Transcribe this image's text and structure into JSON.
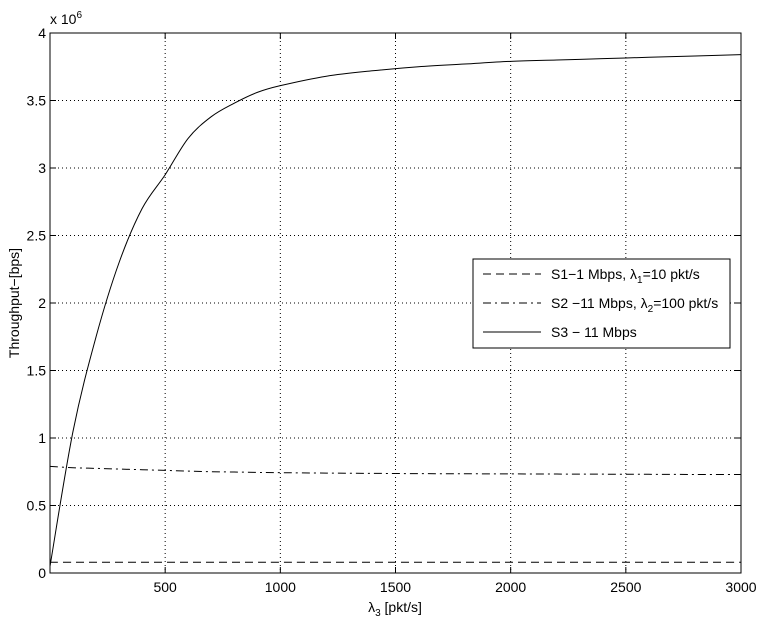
{
  "chart_data": {
    "type": "line",
    "title": "",
    "xlabel": {
      "base": "λ",
      "sub": "3",
      "rest": " [pkt/s]"
    },
    "ylabel": "Throughput−[bps]",
    "y_multiplier": {
      "base": "x 10",
      "exp": "6"
    },
    "xlim": [
      0,
      3000
    ],
    "ylim": [
      0,
      4
    ],
    "xticks": [
      500,
      1000,
      1500,
      2000,
      2500,
      3000
    ],
    "yticks": [
      0,
      0.5,
      1,
      1.5,
      2,
      2.5,
      3,
      3.5,
      4
    ],
    "xtick_labels": [
      "500",
      "1000",
      "1500",
      "2000",
      "2500",
      "3000"
    ],
    "ytick_labels": [
      "0",
      "0.5",
      "1",
      "1.5",
      "2",
      "2.5",
      "3",
      "3.5",
      "4"
    ],
    "grid": true,
    "legend_position": "right-middle",
    "x": [
      0,
      100,
      200,
      300,
      400,
      500,
      600,
      700,
      800,
      900,
      1000,
      1200,
      1400,
      1600,
      1800,
      2000,
      2200,
      2400,
      2600,
      2800,
      3000
    ],
    "series": [
      {
        "style": "dashed",
        "legend": {
          "pre": "S1−1 Mbps, λ",
          "sub": "1",
          "post": "=10 pkt/s"
        },
        "values": [
          0.08,
          0.08,
          0.08,
          0.08,
          0.08,
          0.08,
          0.08,
          0.08,
          0.08,
          0.08,
          0.08,
          0.08,
          0.08,
          0.08,
          0.08,
          0.08,
          0.08,
          0.08,
          0.08,
          0.08,
          0.08
        ]
      },
      {
        "style": "dashdot",
        "legend": {
          "pre": "S2 −11 Mbps, λ",
          "sub": "2",
          "post": "=100 pkt/s"
        },
        "values": [
          0.79,
          0.78,
          0.775,
          0.77,
          0.765,
          0.76,
          0.755,
          0.75,
          0.748,
          0.745,
          0.743,
          0.74,
          0.738,
          0.736,
          0.735,
          0.734,
          0.733,
          0.732,
          0.731,
          0.73,
          0.73
        ]
      },
      {
        "style": "solid",
        "legend": {
          "pre": "S3 − 11 Mbps",
          "sub": "",
          "post": ""
        },
        "values": [
          0.05,
          1.05,
          1.75,
          2.3,
          2.7,
          2.95,
          3.22,
          3.38,
          3.48,
          3.56,
          3.61,
          3.68,
          3.72,
          3.75,
          3.77,
          3.79,
          3.8,
          3.81,
          3.82,
          3.83,
          3.84
        ]
      }
    ]
  }
}
